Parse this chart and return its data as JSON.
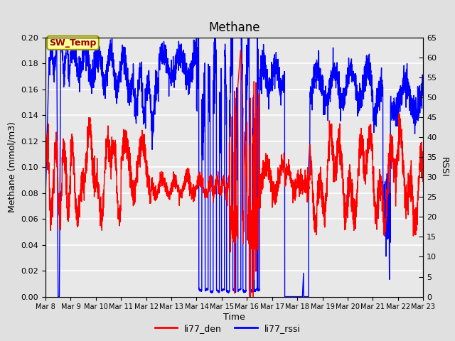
{
  "title": "Methane",
  "xlabel": "Time",
  "ylabel_left": "Methane (mmol/m3)",
  "ylabel_right": "RSSI",
  "ylim_left": [
    0.0,
    0.2
  ],
  "ylim_right": [
    0,
    65
  ],
  "yticks_left": [
    0.0,
    0.02,
    0.04,
    0.06,
    0.08,
    0.1,
    0.12,
    0.14,
    0.16,
    0.18,
    0.2
  ],
  "yticks_right": [
    0,
    5,
    10,
    15,
    20,
    25,
    30,
    35,
    40,
    45,
    50,
    55,
    60,
    65
  ],
  "x_tick_labels": [
    "Mar 8",
    "Mar 9",
    "Mar 10",
    "Mar 11",
    "Mar 12",
    "Mar 13",
    "Mar 14",
    "Mar 15",
    "Mar 16",
    "Mar 17",
    "Mar 18",
    "Mar 19",
    "Mar 20",
    "Mar 21",
    "Mar 22",
    "Mar 23"
  ],
  "color_red": "#FF0000",
  "color_blue": "#0000FF",
  "legend_labels": [
    "li77_den",
    "li77_rssi"
  ],
  "sw_temp_label": "SW_Temp",
  "sw_temp_bg": "#FFFF99",
  "sw_temp_border": "#999900",
  "sw_temp_text_color": "#990000",
  "bg_color": "#E0E0E0",
  "plot_bg_color": "#E8E8E8",
  "grid_color": "#FFFFFF",
  "title_fontsize": 12,
  "axis_fontsize": 9,
  "tick_fontsize": 8,
  "linewidth": 1.0
}
